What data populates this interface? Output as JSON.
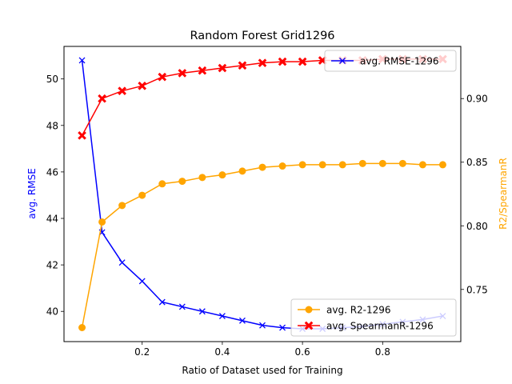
{
  "chart_data": {
    "type": "line",
    "title": "Random Forest Grid1296",
    "xlabel": "Ratio of Dataset used for Training",
    "ylabel_left": "avg. RMSE",
    "ylabel_right": "R2/SpearmanR",
    "xlim": [
      0.005,
      0.995
    ],
    "ylim_left": [
      38.7,
      51.4
    ],
    "ylim_right": [
      0.709,
      0.941
    ],
    "x_ticks": [
      0.2,
      0.4,
      0.6,
      0.8
    ],
    "x_tick_labels": [
      "0.2",
      "0.4",
      "0.6",
      "0.8"
    ],
    "y_left_ticks": [
      40,
      42,
      44,
      46,
      48,
      50
    ],
    "y_left_tick_labels": [
      "40",
      "42",
      "44",
      "46",
      "48",
      "50"
    ],
    "y_right_ticks": [
      0.75,
      0.8,
      0.85,
      0.9
    ],
    "y_right_tick_labels": [
      "0.75",
      "0.80",
      "0.85",
      "0.90"
    ],
    "grid": false,
    "x": [
      0.05,
      0.1,
      0.15,
      0.2,
      0.25,
      0.3,
      0.35,
      0.4,
      0.45,
      0.5,
      0.55,
      0.6,
      0.65,
      0.7,
      0.75,
      0.8,
      0.85,
      0.9,
      0.95
    ],
    "series": [
      {
        "name": "avg. RMSE-1296",
        "axis": "left",
        "color": "#0000ff",
        "marker": "x",
        "values": [
          50.8,
          43.4,
          42.1,
          41.3,
          40.4,
          40.2,
          40.0,
          39.8,
          39.6,
          39.4,
          39.3,
          39.25,
          39.25,
          39.3,
          39.35,
          39.45,
          39.55,
          39.65,
          39.8
        ]
      },
      {
        "name": "avg. R2-1296",
        "axis": "right",
        "color": "#ffa500",
        "marker": "o",
        "values": [
          0.72,
          0.803,
          0.816,
          0.824,
          0.833,
          0.835,
          0.838,
          0.84,
          0.843,
          0.846,
          0.847,
          0.848,
          0.848,
          0.848,
          0.849,
          0.849,
          0.849,
          0.848,
          0.848
        ]
      },
      {
        "name": "avg. SpearmanR-1296",
        "axis": "right",
        "color": "#ff0000",
        "marker": "X",
        "values": [
          0.871,
          0.9,
          0.906,
          0.91,
          0.917,
          0.92,
          0.922,
          0.924,
          0.926,
          0.928,
          0.929,
          0.929,
          0.93,
          0.93,
          0.93,
          0.931,
          0.931,
          0.931,
          0.931
        ]
      }
    ],
    "legends": [
      {
        "placement": "upper right",
        "entries": [
          "avg. RMSE-1296"
        ]
      },
      {
        "placement": "lower right",
        "entries": [
          "avg. R2-1296",
          "avg. SpearmanR-1296"
        ]
      }
    ]
  }
}
